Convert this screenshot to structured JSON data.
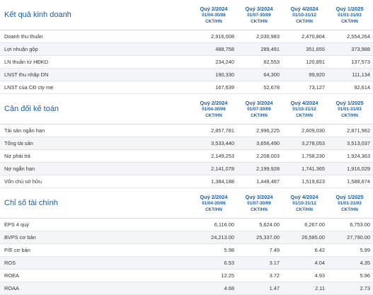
{
  "quarters": [
    {
      "label": "Quý 2/2024",
      "range": "01/04-30/06",
      "tag": "CKT/HN"
    },
    {
      "label": "Quý 3/2024",
      "range": "01/07-30/09",
      "tag": "CKT/HN"
    },
    {
      "label": "Quý 4/2024",
      "range": "01/10-31/12",
      "tag": "CKT/HN"
    },
    {
      "label": "Quý 1/2025",
      "range": "01/01-31/03",
      "tag": "CKT/HN"
    }
  ],
  "sections": [
    {
      "title": "Kết quả kinh doanh",
      "rows": [
        {
          "label": "Doanh thu thuần",
          "values": [
            "2,916,008",
            "2,030,983",
            "2,470,804",
            "2,554,264"
          ]
        },
        {
          "label": "Lợi nhuận gộp",
          "values": [
            "488,758",
            "289,491",
            "351,655",
            "373,988"
          ]
        },
        {
          "label": "LN thuần từ HĐKD",
          "values": [
            "234,240",
            "82,553",
            "120,891",
            "137,573"
          ]
        },
        {
          "label": "LNST thu nhập DN",
          "values": [
            "190,330",
            "64,300",
            "99,920",
            "111,134"
          ]
        },
        {
          "label": "LNST của CĐ cty mẹ",
          "values": [
            "167,639",
            "52,678",
            "73,127",
            "92,614"
          ]
        }
      ]
    },
    {
      "title": "Cân đối kế toán",
      "rows": [
        {
          "label": "Tài sản ngắn hạn",
          "values": [
            "2,857,781",
            "2,996,225",
            "2,609,030",
            "2,871,962"
          ]
        },
        {
          "label": "Tổng tài sản",
          "values": [
            "3,533,440",
            "3,656,490",
            "3,278,053",
            "3,513,037"
          ]
        },
        {
          "label": "Nợ phải trả",
          "values": [
            "2,149,253",
            "2,208,003",
            "1,758,230",
            "1,924,363"
          ]
        },
        {
          "label": "Nợ ngắn hạn",
          "values": [
            "2,141,078",
            "2,199,928",
            "1,741,365",
            "1,916,029"
          ]
        },
        {
          "label": "Vốn chủ sở hữu",
          "values": [
            "1,384,188",
            "1,448,487",
            "1,519,823",
            "1,588,674"
          ]
        }
      ]
    },
    {
      "title": "Chỉ số tài chính",
      "rows": [
        {
          "label": "EPS 4 quý",
          "values": [
            "6,116.00",
            "5,624.00",
            "6,267.00",
            "6,753.00"
          ]
        },
        {
          "label": "BVPS cơ bản",
          "values": [
            "24,213.00",
            "25,337.00",
            "26,585.00",
            "27,790.00"
          ]
        },
        {
          "label": "P/E cơ bản",
          "values": [
            "5.98",
            "7.49",
            "6.42",
            "5.99"
          ]
        },
        {
          "label": "ROS",
          "values": [
            "6.53",
            "3.17",
            "4.04",
            "4.35"
          ]
        },
        {
          "label": "ROEA",
          "values": [
            "12.25",
            "3.72",
            "4.93",
            "5.96"
          ]
        },
        {
          "label": "ROAA",
          "values": [
            "4.68",
            "1.47",
            "2.11",
            "2.73"
          ]
        }
      ]
    }
  ]
}
